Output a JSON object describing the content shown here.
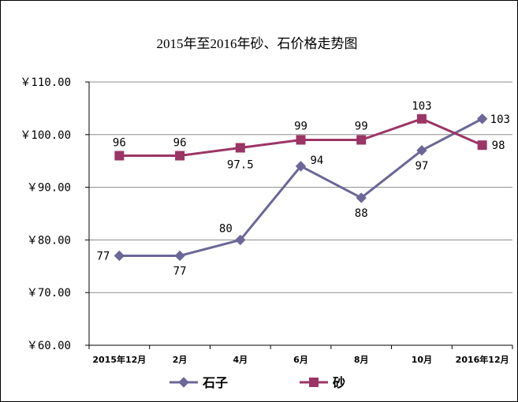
{
  "chart_data": {
    "type": "line",
    "title": "2015年至2016年砂、石价格走势图",
    "categories": [
      "2015年12月",
      "2月",
      "4月",
      "6月",
      "8月",
      "10月",
      "2016年12月"
    ],
    "ylim": [
      60,
      110
    ],
    "yticks": [
      "￥110.00",
      "￥100.00",
      "￥90.00",
      "￥80.00",
      "￥70.00",
      "￥60.00"
    ],
    "ytick_values": [
      110,
      100,
      90,
      80,
      70,
      60
    ],
    "grid": true,
    "legend_position": "bottom",
    "series": [
      {
        "name": "石子",
        "values": [
          77,
          77,
          80,
          94,
          88,
          97,
          103
        ],
        "labels": [
          "77",
          "77",
          "80",
          "94",
          "88",
          "97",
          "103"
        ],
        "color": "#6b6797",
        "marker": "diamond"
      },
      {
        "name": "砂",
        "values": [
          96,
          96,
          97.5,
          99,
          99,
          103,
          98
        ],
        "labels": [
          "96",
          "96",
          "97.5",
          "99",
          "99",
          "103",
          "98"
        ],
        "color": "#9b3565",
        "marker": "square"
      }
    ]
  }
}
